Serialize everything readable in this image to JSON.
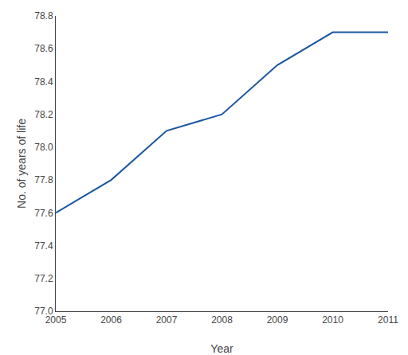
{
  "chart_data": {
    "type": "line",
    "x": [
      2005,
      2006,
      2007,
      2008,
      2009,
      2010,
      2011
    ],
    "values": [
      77.6,
      77.8,
      78.1,
      78.2,
      78.5,
      78.7,
      78.7
    ],
    "color": "#1a56a0",
    "xlabel": "Year",
    "ylabel": "No. of years of life",
    "xlim": [
      2005,
      2011
    ],
    "ylim": [
      77.0,
      78.8
    ],
    "xticks": [
      2005,
      2006,
      2007,
      2008,
      2009,
      2010,
      2011
    ],
    "yticks": [
      {
        "value": 77.0,
        "label": "77.0"
      },
      77.2,
      77.4,
      77.6,
      77.8,
      {
        "value": 78.0,
        "label": "78.0"
      },
      78.2,
      78.4,
      78.6,
      78.8
    ],
    "grid": false
  }
}
